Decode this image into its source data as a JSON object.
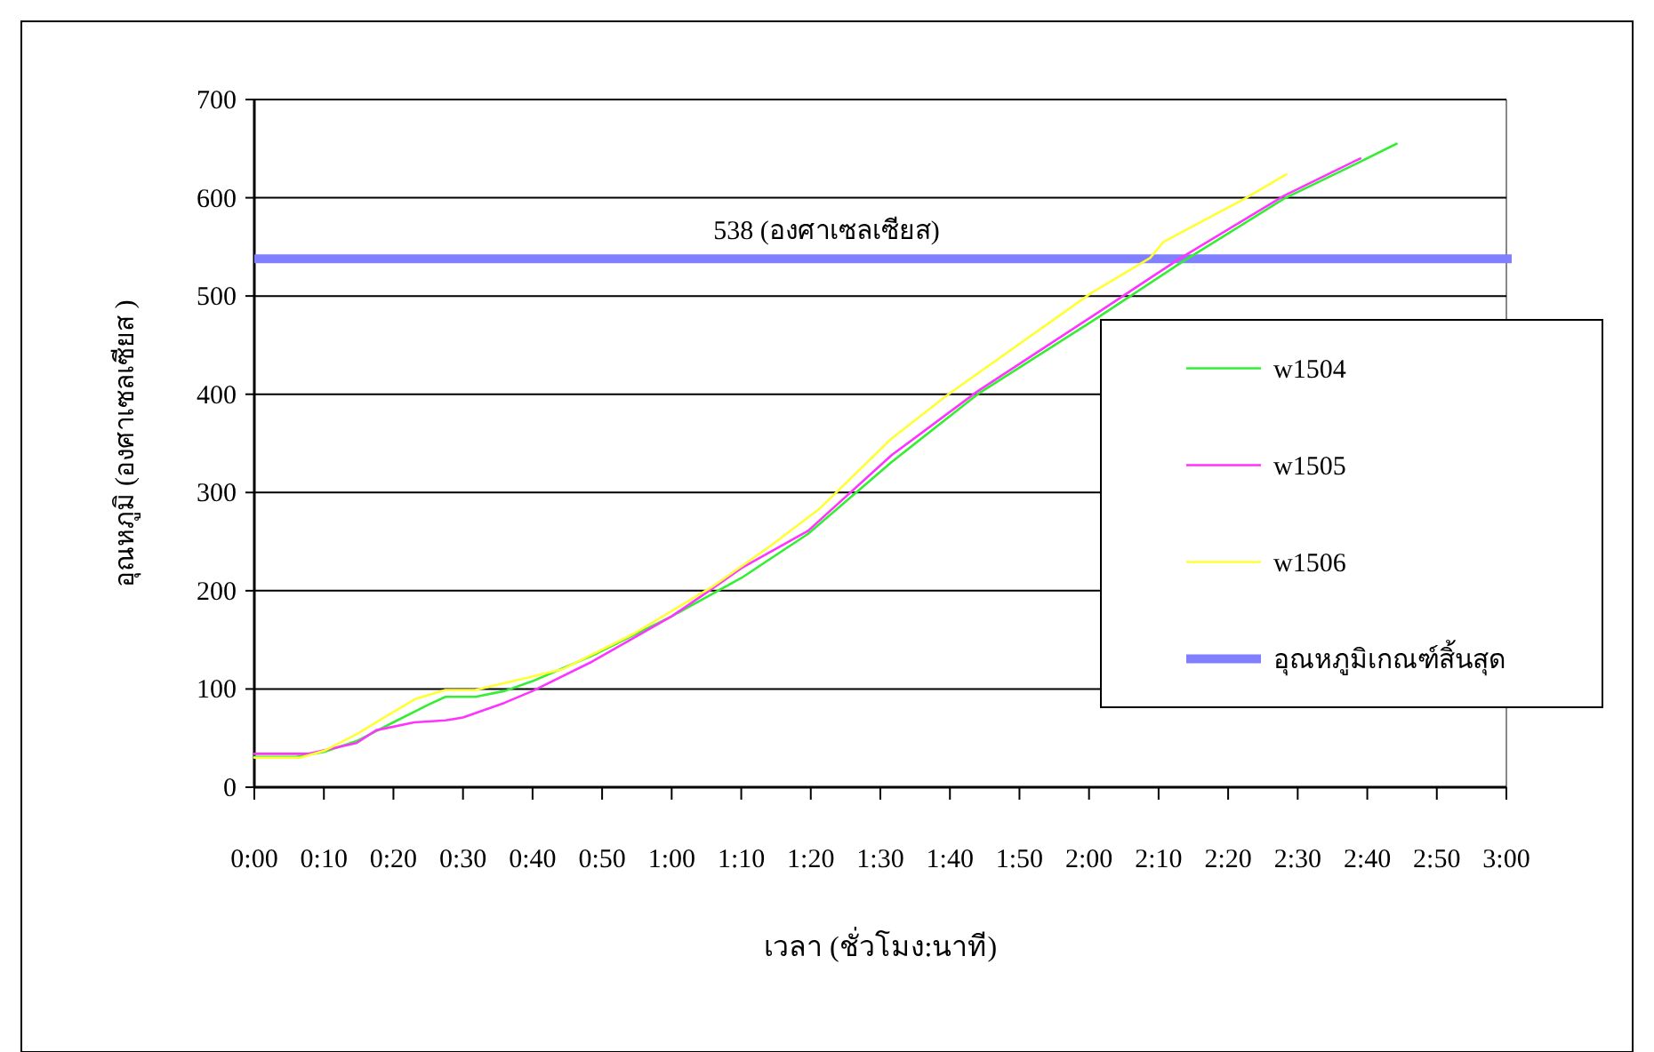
{
  "chart_data": {
    "type": "line",
    "xlabel": "เวลา (ชั่วโมง:นาที)",
    "ylabel": "อุณหภูมิ (องศาเซลเซียส )",
    "xlim": [
      0,
      3
    ],
    "xticks": [
      {
        "value": 0,
        "label": "0:00"
      },
      {
        "value": 0.1667,
        "label": "0:10"
      },
      {
        "value": 0.3333,
        "label": "0:20"
      },
      {
        "value": 0.5,
        "label": "0:30"
      },
      {
        "value": 0.6667,
        "label": "0:40"
      },
      {
        "value": 0.8333,
        "label": "0:50"
      },
      {
        "value": 1,
        "label": "1:00"
      },
      {
        "value": 1.1667,
        "label": "1:10"
      },
      {
        "value": 1.3333,
        "label": "1:20"
      },
      {
        "value": 1.5,
        "label": "1:30"
      },
      {
        "value": 1.6667,
        "label": "1:40"
      },
      {
        "value": 1.8333,
        "label": "1:50"
      },
      {
        "value": 2,
        "label": "2:00"
      },
      {
        "value": 2.1667,
        "label": "2:10"
      },
      {
        "value": 2.3333,
        "label": "2:20"
      },
      {
        "value": 2.5,
        "label": "2:30"
      },
      {
        "value": 2.6667,
        "label": "2:40"
      },
      {
        "value": 2.8333,
        "label": "2:50"
      },
      {
        "value": 3,
        "label": "3:00"
      }
    ],
    "ylim": [
      0,
      700
    ],
    "yticks": [
      0,
      100,
      200,
      300,
      400,
      500,
      600,
      700
    ],
    "grid": "y",
    "legend": "right",
    "marker": "none",
    "line_style": "solid",
    "series": [
      {
        "name": "w1504",
        "color": "#33ee33",
        "x": [
          0,
          0.1,
          0.167,
          0.245,
          0.333,
          0.417,
          0.458,
          0.53,
          0.6,
          0.667,
          0.81,
          1,
          1.167,
          1.327,
          1.527,
          1.733,
          2.017,
          2.217,
          2.467,
          2.642,
          2.737
        ],
        "values": [
          31,
          31,
          36,
          47,
          66,
          84,
          92,
          92,
          98,
          108,
          134,
          174,
          213,
          258,
          331,
          400,
          477,
          533,
          599,
          635,
          655
        ]
      },
      {
        "name": "w1505",
        "color": "#ff33ff",
        "x": [
          0,
          0.128,
          0.245,
          0.292,
          0.383,
          0.458,
          0.5,
          0.6,
          0.667,
          0.81,
          1,
          1.083,
          1.167,
          1.327,
          1.527,
          1.733,
          2.017,
          2.217,
          2.467,
          2.65
        ],
        "values": [
          34,
          34,
          45,
          58,
          66,
          68,
          71,
          86,
          98,
          128,
          174,
          198,
          223,
          261,
          338,
          403,
          482,
          538,
          602,
          640
        ]
      },
      {
        "name": "w1506",
        "color": "#ffff33",
        "x": [
          0,
          0.11,
          0.167,
          0.245,
          0.315,
          0.387,
          0.458,
          0.53,
          0.6,
          0.738,
          0.908,
          1.097,
          1.238,
          1.353,
          1.527,
          1.663,
          2.005,
          2.147,
          2.178,
          2.373,
          2.473
        ],
        "values": [
          30,
          30,
          37,
          54,
          72,
          90,
          99,
          99,
          106,
          120,
          156,
          204,
          246,
          283,
          355,
          400,
          503,
          539,
          555,
          599,
          624
        ]
      }
    ],
    "ref_lines": [
      {
        "axis": "y",
        "value": 538,
        "label": "อุณหภูมิเกณฑ์สิ้นสุด",
        "color": "#7f7fff"
      }
    ],
    "annotations": [
      {
        "text": "538 (องศาเซลเซียส)",
        "x": 1.1,
        "y": 538
      }
    ]
  }
}
